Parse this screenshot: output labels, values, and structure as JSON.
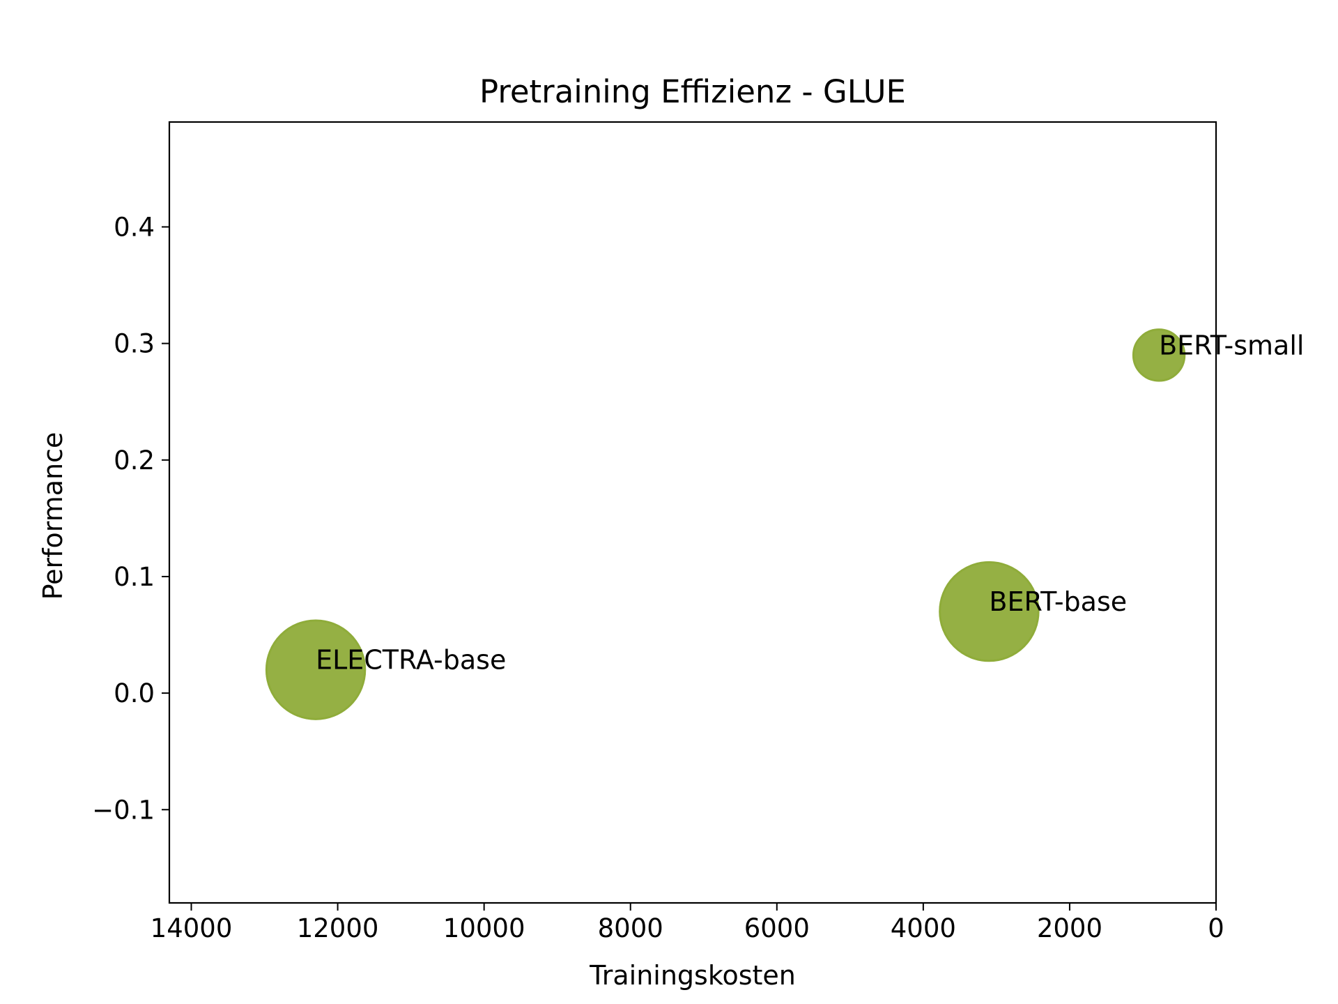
{
  "chart_data": {
    "type": "scatter",
    "title": "Pretraining Effizienz - GLUE",
    "xlabel": "Trainingskosten",
    "ylabel": "Performance",
    "xlim": [
      14300,
      0
    ],
    "ylim": [
      -0.18,
      0.49
    ],
    "x_inverted": true,
    "xticks": [
      14000,
      12000,
      10000,
      8000,
      6000,
      4000,
      2000,
      0
    ],
    "xtick_labels": [
      "14000",
      "12000",
      "10000",
      "8000",
      "6000",
      "4000",
      "2000",
      "0"
    ],
    "yticks": [
      -0.1,
      0.0,
      0.1,
      0.2,
      0.3,
      0.4
    ],
    "ytick_labels": [
      "−0.1",
      "0.0",
      "0.1",
      "0.2",
      "0.3",
      "0.4"
    ],
    "grid": false,
    "marker_color": "#8fac3a",
    "points": [
      {
        "label": "ELECTRA-base",
        "x": 12300,
        "y": 0.02,
        "size": 13000
      },
      {
        "label": "BERT-base",
        "x": 3100,
        "y": 0.07,
        "size": 13000
      },
      {
        "label": "BERT-small",
        "x": 780,
        "y": 0.29,
        "size": 3500
      }
    ]
  }
}
